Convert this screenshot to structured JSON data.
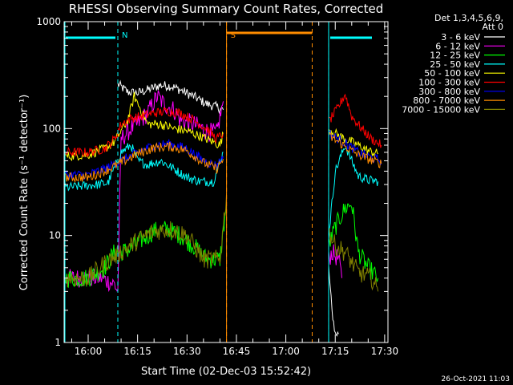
{
  "chart_data": {
    "type": "line",
    "title": "RHESSI Observing Summary Count Rates, Corrected",
    "xlabel": "Start Time (02-Dec-03 15:52:42)",
    "ylabel": "Corrected Count Rate (s⁻¹ detector⁻¹)",
    "y_scale": "log",
    "ylim": [
      1,
      1000
    ],
    "xlim": [
      "15:52:42",
      "17:31:00"
    ],
    "y_ticks": [
      "1",
      "10",
      "100",
      "1000"
    ],
    "x_ticks": [
      "16:00",
      "16:15",
      "16:30",
      "16:45",
      "17:00",
      "17:15",
      "17:30"
    ],
    "legend_header": [
      "Det 1,3,4,5,6,9,",
      "Att 0"
    ],
    "legend_position": "right",
    "timestamp": "26-Oct-2021 11:03",
    "annotations": [
      {
        "label": "N",
        "color": "#00ffff",
        "kind": "night",
        "start": "16:09",
        "end": "17:13"
      },
      {
        "label": "S",
        "color": "#ff8c00",
        "kind": "saa",
        "start": "16:42",
        "end": "17:08"
      }
    ],
    "gaps": [
      {
        "start": "16:42",
        "end": "17:13"
      }
    ],
    "series": [
      {
        "name": "3 - 6 keV",
        "color": "#ffffff",
        "points": [
          [
            "16:09",
            260
          ],
          [
            "16:12",
            220
          ],
          [
            "16:15",
            215
          ],
          [
            "16:18",
            230
          ],
          [
            "16:22",
            255
          ],
          [
            "16:25",
            250
          ],
          [
            "16:28",
            230
          ],
          [
            "16:32",
            200
          ],
          [
            "16:36",
            170
          ],
          [
            "16:39",
            160
          ],
          [
            "16:41",
            150
          ],
          [
            "17:13",
            5
          ],
          [
            "17:14",
            2
          ],
          [
            "17:15",
            1.2
          ],
          [
            "17:16",
            1.2
          ]
        ]
      },
      {
        "name": "6 - 12 keV",
        "color": "#ff00ff",
        "points": [
          [
            "15:53",
            4
          ],
          [
            "16:04",
            4
          ],
          [
            "16:08",
            3.5
          ],
          [
            "16:09",
            3
          ],
          [
            "16:10",
            80
          ],
          [
            "16:13",
            100
          ],
          [
            "16:15",
            110
          ],
          [
            "16:18",
            140
          ],
          [
            "16:21",
            200
          ],
          [
            "16:23",
            170
          ],
          [
            "16:26",
            150
          ],
          [
            "16:28",
            120
          ],
          [
            "16:32",
            110
          ],
          [
            "16:36",
            95
          ],
          [
            "16:39",
            90
          ],
          [
            "16:41",
            180
          ],
          [
            "17:13",
            6
          ],
          [
            "17:14",
            7
          ],
          [
            "17:16",
            6
          ],
          [
            "17:17",
            4
          ]
        ]
      },
      {
        "name": "12 - 25 keV",
        "color": "#00ff00",
        "points": [
          [
            "15:53",
            4
          ],
          [
            "16:00",
            4
          ],
          [
            "16:05",
            5
          ],
          [
            "16:08",
            7
          ],
          [
            "16:10",
            7
          ],
          [
            "16:13",
            7.5
          ],
          [
            "16:16",
            9
          ],
          [
            "16:20",
            11
          ],
          [
            "16:24",
            11.5
          ],
          [
            "16:28",
            10
          ],
          [
            "16:32",
            8
          ],
          [
            "16:36",
            6
          ],
          [
            "16:40",
            6
          ],
          [
            "16:42",
            20
          ],
          [
            "17:13",
            8
          ],
          [
            "17:15",
            12
          ],
          [
            "17:18",
            18
          ],
          [
            "17:20",
            20
          ],
          [
            "17:22",
            7
          ],
          [
            "17:25",
            5
          ],
          [
            "17:28",
            4
          ]
        ]
      },
      {
        "name": "25 - 50 keV",
        "color": "#00ffff",
        "points": [
          [
            "15:53",
            28
          ],
          [
            "15:58",
            29
          ],
          [
            "16:03",
            30
          ],
          [
            "16:06",
            31
          ],
          [
            "16:10",
            60
          ],
          [
            "16:13",
            70
          ],
          [
            "16:15",
            50
          ],
          [
            "16:18",
            46
          ],
          [
            "16:22",
            50
          ],
          [
            "16:26",
            42
          ],
          [
            "16:30",
            35
          ],
          [
            "16:34",
            32
          ],
          [
            "16:38",
            32
          ],
          [
            "16:41",
            60
          ],
          [
            "17:13",
            10
          ],
          [
            "17:15",
            40
          ],
          [
            "17:18",
            70
          ],
          [
            "17:22",
            36
          ],
          [
            "17:25",
            33
          ],
          [
            "17:28",
            32
          ]
        ]
      },
      {
        "name": "50 - 100 keV",
        "color": "#ffff00",
        "points": [
          [
            "15:53",
            55
          ],
          [
            "16:00",
            57
          ],
          [
            "16:05",
            65
          ],
          [
            "16:08",
            75
          ],
          [
            "16:10",
            95
          ],
          [
            "16:12",
            120
          ],
          [
            "16:14",
            200
          ],
          [
            "16:16",
            150
          ],
          [
            "16:18",
            110
          ],
          [
            "16:22",
            110
          ],
          [
            "16:26",
            100
          ],
          [
            "16:30",
            95
          ],
          [
            "16:34",
            85
          ],
          [
            "16:38",
            75
          ],
          [
            "16:40",
            70
          ],
          [
            "16:41",
            90
          ],
          [
            "17:13",
            100
          ],
          [
            "17:15",
            90
          ],
          [
            "17:18",
            80
          ],
          [
            "17:22",
            70
          ],
          [
            "17:25",
            62
          ],
          [
            "17:28",
            58
          ]
        ]
      },
      {
        "name": "100 - 300 keV",
        "color": "#ff0000",
        "points": [
          [
            "15:53",
            60
          ],
          [
            "16:00",
            60
          ],
          [
            "16:05",
            65
          ],
          [
            "16:08",
            80
          ],
          [
            "16:10",
            110
          ],
          [
            "16:13",
            125
          ],
          [
            "16:16",
            130
          ],
          [
            "16:20",
            140
          ],
          [
            "16:24",
            145
          ],
          [
            "16:28",
            140
          ],
          [
            "16:32",
            120
          ],
          [
            "16:36",
            100
          ],
          [
            "16:39",
            80
          ],
          [
            "16:41",
            90
          ],
          [
            "17:13",
            115
          ],
          [
            "17:16",
            160
          ],
          [
            "17:18",
            210
          ],
          [
            "17:20",
            130
          ],
          [
            "17:23",
            100
          ],
          [
            "17:26",
            80
          ],
          [
            "17:29",
            70
          ]
        ]
      },
      {
        "name": "300 - 800 keV",
        "color": "#0000ff",
        "points": [
          [
            "15:53",
            37
          ],
          [
            "16:00",
            37
          ],
          [
            "16:05",
            42
          ],
          [
            "16:10",
            50
          ],
          [
            "16:15",
            60
          ],
          [
            "16:20",
            70
          ],
          [
            "16:25",
            72
          ],
          [
            "16:30",
            65
          ],
          [
            "16:35",
            50
          ],
          [
            "16:39",
            45
          ],
          [
            "16:41",
            55
          ],
          [
            "17:13",
            90
          ],
          [
            "17:16",
            80
          ],
          [
            "17:19",
            70
          ],
          [
            "17:22",
            60
          ],
          [
            "17:25",
            55
          ],
          [
            "17:29",
            50
          ]
        ]
      },
      {
        "name": "800 - 7000 keV",
        "color": "#ff8c00",
        "points": [
          [
            "15:53",
            35
          ],
          [
            "16:00",
            35
          ],
          [
            "16:05",
            40
          ],
          [
            "16:10",
            48
          ],
          [
            "16:15",
            58
          ],
          [
            "16:20",
            66
          ],
          [
            "16:25",
            68
          ],
          [
            "16:30",
            62
          ],
          [
            "16:35",
            48
          ],
          [
            "16:39",
            42
          ],
          [
            "16:41",
            52
          ],
          [
            "17:13",
            85
          ],
          [
            "17:16",
            75
          ],
          [
            "17:19",
            65
          ],
          [
            "17:22",
            57
          ],
          [
            "17:25",
            52
          ],
          [
            "17:29",
            47
          ]
        ]
      },
      {
        "name": "7000 - 15000 keV",
        "color": "#808000",
        "points": [
          [
            "15:53",
            4
          ],
          [
            "16:00",
            4
          ],
          [
            "16:05",
            5.5
          ],
          [
            "16:10",
            7
          ],
          [
            "16:15",
            9
          ],
          [
            "16:20",
            11
          ],
          [
            "16:25",
            11.5
          ],
          [
            "16:30",
            10
          ],
          [
            "16:35",
            6
          ],
          [
            "16:40",
            6
          ],
          [
            "16:42",
            25
          ],
          [
            "17:13",
            11
          ],
          [
            "17:15",
            8
          ],
          [
            "17:18",
            7
          ],
          [
            "17:22",
            4.5
          ],
          [
            "17:26",
            4
          ],
          [
            "17:28",
            3
          ]
        ]
      }
    ]
  }
}
